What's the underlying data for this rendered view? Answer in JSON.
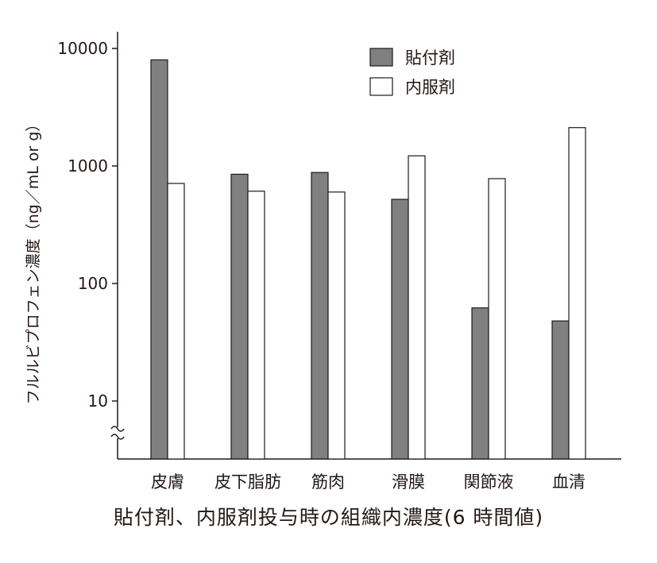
{
  "chart_data": {
    "type": "bar",
    "scale": "log",
    "ylabel": "フルルビプロフェン濃度（ng／mL or g）",
    "caption": "貼付剤、内服剤投与時の組織内濃度(6 時間値)",
    "yticks": [
      "10",
      "100",
      "1000",
      "10000"
    ],
    "ytick_values": [
      10,
      100,
      1000,
      10000
    ],
    "ylim": [
      3,
      22000
    ],
    "axis_break": true,
    "categories": [
      "皮膚",
      "皮下脂肪",
      "筋肉",
      "滑膜",
      "関節液",
      "血清"
    ],
    "series": [
      {
        "name": "貼付剤",
        "color": "#808080",
        "values": [
          8000,
          850,
          880,
          520,
          62,
          48
        ]
      },
      {
        "name": "内服剤",
        "color": "#ffffff",
        "values": [
          710,
          610,
          600,
          1220,
          780,
          2120
        ]
      }
    ],
    "legend_position": "top-right",
    "grid": false
  }
}
